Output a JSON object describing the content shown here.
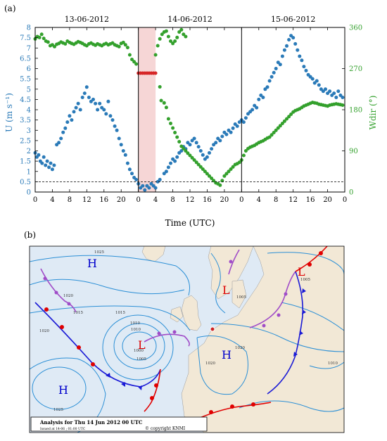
{
  "panels": {
    "a": {
      "label": "(a)"
    },
    "b": {
      "label": "(b)"
    }
  },
  "chart_data": {
    "type": "scatter",
    "date_labels": [
      "13-06-2012",
      "14-06-2012",
      "15-06-2012"
    ],
    "xlabel": "Time (UTC)",
    "x_ticks": [
      "0",
      "4",
      "8",
      "12",
      "16",
      "20",
      "0",
      "4",
      "8",
      "12",
      "16",
      "20",
      "0",
      "4",
      "8",
      "12",
      "16",
      "20",
      "0"
    ],
    "x_range_hours": [
      0,
      72
    ],
    "day_boundaries_hours": [
      24,
      48
    ],
    "shaded_interval_hours": [
      24,
      28
    ],
    "ylabel_left": "U (m s⁻¹)",
    "ylim_left": [
      0,
      8
    ],
    "yticks_left": [
      "0",
      "0.5",
      "1",
      "1.5",
      "2",
      "2.5",
      "3",
      "3.5",
      "4",
      "4.5",
      "5",
      "5.5",
      "6",
      "6.5",
      "7",
      "7.5",
      "8"
    ],
    "ylabel_right": "Wdir (°)",
    "ylim_right": [
      0,
      360
    ],
    "yticks_right": [
      "0",
      "90",
      "180",
      "270",
      "360"
    ],
    "threshold_line_left_units": 0.5,
    "colors": {
      "speed": "#2a7ab8",
      "direction": "#33a02c",
      "anomaly": "#d62728",
      "shade": "#f6d6d6"
    },
    "series": [
      {
        "axis": "left",
        "points": [
          [
            0,
            1.9
          ],
          [
            0.4,
            1.7
          ],
          [
            0.8,
            1.8
          ],
          [
            1.2,
            1.5
          ],
          [
            1.6,
            1.4
          ],
          [
            2,
            1.7
          ],
          [
            2.4,
            1.3
          ],
          [
            2.8,
            1.5
          ],
          [
            3.2,
            1.2
          ],
          [
            3.6,
            1.4
          ],
          [
            4,
            1.1
          ],
          [
            4.4,
            1.3
          ],
          [
            5,
            2.3
          ],
          [
            5.5,
            2.4
          ],
          [
            6,
            2.6
          ],
          [
            6.5,
            2.9
          ],
          [
            7,
            3.1
          ],
          [
            7.5,
            3.4
          ],
          [
            8,
            3.7
          ],
          [
            8.5,
            3.5
          ],
          [
            9,
            3.9
          ],
          [
            9.5,
            4.1
          ],
          [
            10,
            4.3
          ],
          [
            10.5,
            4.0
          ],
          [
            11,
            4.6
          ],
          [
            11.5,
            4.8
          ],
          [
            12,
            5.1
          ],
          [
            12.5,
            4.6
          ],
          [
            13,
            4.4
          ],
          [
            13.5,
            4.5
          ],
          [
            14,
            4.3
          ],
          [
            14.5,
            4.0
          ],
          [
            15,
            4.3
          ],
          [
            15.5,
            4.1
          ],
          [
            16,
            4.0
          ],
          [
            16.5,
            3.8
          ],
          [
            17,
            4.4
          ],
          [
            17.5,
            3.7
          ],
          [
            18,
            3.5
          ],
          [
            18.5,
            3.2
          ],
          [
            19,
            3.0
          ],
          [
            19.5,
            2.6
          ],
          [
            20,
            2.3
          ],
          [
            20.5,
            2.0
          ],
          [
            21,
            1.8
          ],
          [
            21.5,
            1.4
          ],
          [
            22,
            1.1
          ],
          [
            22.5,
            0.9
          ],
          [
            23,
            0.7
          ],
          [
            23.5,
            0.6
          ],
          [
            24,
            0.4
          ],
          [
            24.5,
            0.2
          ],
          [
            25,
            0.3
          ],
          [
            25.5,
            0.1
          ],
          [
            26,
            0.3
          ],
          [
            26.5,
            0.2
          ],
          [
            27,
            0.4
          ],
          [
            27.5,
            0.3
          ],
          [
            28,
            0.2
          ],
          [
            28.5,
            0.5
          ],
          [
            29,
            0.6
          ],
          [
            30,
            0.9
          ],
          [
            30.5,
            1.0
          ],
          [
            31,
            1.2
          ],
          [
            31.5,
            1.4
          ],
          [
            32,
            1.6
          ],
          [
            32.5,
            1.5
          ],
          [
            33,
            1.7
          ],
          [
            33.5,
            1.9
          ],
          [
            34,
            2.0
          ],
          [
            34.5,
            2.2
          ],
          [
            35,
            2.1
          ],
          [
            35.5,
            2.4
          ],
          [
            36,
            2.3
          ],
          [
            36.5,
            2.5
          ],
          [
            37,
            2.6
          ],
          [
            37.5,
            2.4
          ],
          [
            38,
            2.2
          ],
          [
            38.5,
            2.0
          ],
          [
            39,
            1.8
          ],
          [
            39.5,
            1.6
          ],
          [
            40,
            1.7
          ],
          [
            40.5,
            1.9
          ],
          [
            41,
            2.1
          ],
          [
            41.5,
            2.3
          ],
          [
            42,
            2.4
          ],
          [
            42.5,
            2.6
          ],
          [
            43,
            2.5
          ],
          [
            43.5,
            2.7
          ],
          [
            44,
            2.9
          ],
          [
            44.5,
            2.8
          ],
          [
            45,
            3.0
          ],
          [
            45.5,
            2.9
          ],
          [
            46,
            3.1
          ],
          [
            46.5,
            3.3
          ],
          [
            47,
            3.2
          ],
          [
            47.5,
            3.4
          ],
          [
            48,
            3.5
          ],
          [
            48.5,
            3.4
          ],
          [
            49,
            3.6
          ],
          [
            49.5,
            3.8
          ],
          [
            50,
            3.9
          ],
          [
            50.5,
            4.0
          ],
          [
            51,
            4.2
          ],
          [
            51.5,
            4.1
          ],
          [
            52,
            4.5
          ],
          [
            52.5,
            4.7
          ],
          [
            53,
            4.6
          ],
          [
            53.5,
            5.0
          ],
          [
            54,
            5.1
          ],
          [
            54.5,
            5.4
          ],
          [
            55,
            5.6
          ],
          [
            55.5,
            5.8
          ],
          [
            56,
            6.0
          ],
          [
            56.5,
            6.3
          ],
          [
            57,
            6.2
          ],
          [
            57.5,
            6.6
          ],
          [
            58,
            6.9
          ],
          [
            58.5,
            7.1
          ],
          [
            59,
            7.4
          ],
          [
            59.5,
            7.6
          ],
          [
            60,
            7.5
          ],
          [
            60.5,
            7.2
          ],
          [
            61,
            6.9
          ],
          [
            61.5,
            6.6
          ],
          [
            62,
            6.4
          ],
          [
            62.5,
            6.1
          ],
          [
            63,
            5.9
          ],
          [
            63.5,
            5.7
          ],
          [
            64,
            5.6
          ],
          [
            64.5,
            5.5
          ],
          [
            65,
            5.3
          ],
          [
            65.5,
            5.4
          ],
          [
            66,
            5.2
          ],
          [
            66.5,
            5.0
          ],
          [
            67,
            4.9
          ],
          [
            67.5,
            5.0
          ],
          [
            68,
            4.8
          ],
          [
            68.5,
            4.9
          ],
          [
            69,
            4.7
          ],
          [
            69.5,
            4.8
          ],
          [
            70,
            4.6
          ],
          [
            70.5,
            4.9
          ],
          [
            71,
            4.7
          ],
          [
            71.5,
            4.6
          ]
        ]
      },
      {
        "axis": "right",
        "points": [
          [
            0,
            335
          ],
          [
            0.5,
            340
          ],
          [
            1,
            338
          ],
          [
            1.5,
            345
          ],
          [
            2,
            336
          ],
          [
            2.5,
            330
          ],
          [
            3,
            328
          ],
          [
            3.5,
            320
          ],
          [
            4,
            322
          ],
          [
            4.5,
            318
          ],
          [
            5,
            323
          ],
          [
            5.5,
            325
          ],
          [
            6,
            328
          ],
          [
            6.5,
            326
          ],
          [
            7,
            324
          ],
          [
            7.5,
            330
          ],
          [
            8,
            327
          ],
          [
            8.5,
            325
          ],
          [
            9,
            323
          ],
          [
            9.5,
            326
          ],
          [
            10,
            329
          ],
          [
            10.5,
            327
          ],
          [
            11,
            325
          ],
          [
            11.5,
            322
          ],
          [
            12,
            320
          ],
          [
            12.5,
            324
          ],
          [
            13,
            326
          ],
          [
            13.5,
            323
          ],
          [
            14,
            321
          ],
          [
            14.5,
            324
          ],
          [
            15,
            322
          ],
          [
            15.5,
            320
          ],
          [
            16,
            323
          ],
          [
            16.5,
            325
          ],
          [
            17,
            322
          ],
          [
            17.5,
            324
          ],
          [
            18,
            326
          ],
          [
            18.5,
            322
          ],
          [
            19,
            320
          ],
          [
            19.5,
            318
          ],
          [
            20,
            325
          ],
          [
            20.5,
            327
          ],
          [
            21,
            322
          ],
          [
            21.5,
            316
          ],
          [
            22,
            300
          ],
          [
            22.5,
            290
          ],
          [
            23,
            285
          ],
          [
            23.5,
            280
          ],
          [
            28,
            300
          ],
          [
            28.5,
            320
          ],
          [
            29,
            335
          ],
          [
            29.5,
            345
          ],
          [
            30,
            350
          ],
          [
            30.5,
            352
          ],
          [
            31,
            340
          ],
          [
            31.5,
            330
          ],
          [
            32,
            325
          ],
          [
            32.5,
            330
          ],
          [
            33,
            338
          ],
          [
            33.5,
            350
          ],
          [
            34,
            355
          ],
          [
            34.5,
            345
          ],
          [
            35,
            340
          ],
          [
            29,
            230
          ],
          [
            29.3,
            200
          ],
          [
            30,
            195
          ],
          [
            30.5,
            185
          ],
          [
            31,
            160
          ],
          [
            31.5,
            150
          ],
          [
            32,
            140
          ],
          [
            32.5,
            130
          ],
          [
            33,
            120
          ],
          [
            33.5,
            110
          ],
          [
            34,
            100
          ],
          [
            34.5,
            95
          ],
          [
            35,
            90
          ],
          [
            35.5,
            85
          ],
          [
            36,
            80
          ],
          [
            36.5,
            75
          ],
          [
            37,
            70
          ],
          [
            37.5,
            65
          ],
          [
            38,
            60
          ],
          [
            38.5,
            55
          ],
          [
            39,
            50
          ],
          [
            39.5,
            45
          ],
          [
            40,
            40
          ],
          [
            40.5,
            35
          ],
          [
            41,
            30
          ],
          [
            41.5,
            25
          ],
          [
            42,
            20
          ],
          [
            42.5,
            18
          ],
          [
            43,
            15
          ],
          [
            43.5,
            25
          ],
          [
            44,
            35
          ],
          [
            44.5,
            40
          ],
          [
            45,
            45
          ],
          [
            45.5,
            50
          ],
          [
            46,
            55
          ],
          [
            46.5,
            60
          ],
          [
            47,
            62
          ],
          [
            47.5,
            65
          ],
          [
            48,
            70
          ],
          [
            48.5,
            80
          ],
          [
            49,
            90
          ],
          [
            49.5,
            95
          ],
          [
            50,
            98
          ],
          [
            50.5,
            100
          ],
          [
            51,
            102
          ],
          [
            51.5,
            105
          ],
          [
            52,
            108
          ],
          [
            52.5,
            110
          ],
          [
            53,
            112
          ],
          [
            53.5,
            115
          ],
          [
            54,
            118
          ],
          [
            54.5,
            120
          ],
          [
            55,
            125
          ],
          [
            55.5,
            130
          ],
          [
            56,
            135
          ],
          [
            56.5,
            140
          ],
          [
            57,
            145
          ],
          [
            57.5,
            150
          ],
          [
            58,
            155
          ],
          [
            58.5,
            160
          ],
          [
            59,
            165
          ],
          [
            59.5,
            170
          ],
          [
            60,
            175
          ],
          [
            60.5,
            178
          ],
          [
            61,
            180
          ],
          [
            61.5,
            182
          ],
          [
            62,
            185
          ],
          [
            62.5,
            188
          ],
          [
            63,
            190
          ],
          [
            63.5,
            192
          ],
          [
            64,
            194
          ],
          [
            64.5,
            196
          ],
          [
            65,
            195
          ],
          [
            65.5,
            194
          ],
          [
            66,
            192
          ],
          [
            66.5,
            191
          ],
          [
            67,
            190
          ],
          [
            67.5,
            189
          ],
          [
            68,
            188
          ],
          [
            68.5,
            190
          ],
          [
            69,
            191
          ],
          [
            69.5,
            192
          ],
          [
            70,
            193
          ],
          [
            70.5,
            192
          ],
          [
            71,
            191
          ],
          [
            71.5,
            190
          ]
        ]
      },
      {
        "axis": "right",
        "points": [
          [
            24,
            260
          ],
          [
            24.5,
            260
          ],
          [
            25,
            260
          ],
          [
            25.5,
            260
          ],
          [
            26,
            260
          ],
          [
            26.5,
            260
          ],
          [
            27,
            260
          ],
          [
            27.5,
            260
          ],
          [
            28,
            260
          ]
        ]
      }
    ]
  },
  "map": {
    "title_box": "Analysis for Thu 14 Jun 2012 00 UTC",
    "issued": "Issued at 14-06 ; 01:00 UTC",
    "copyright": "© copyright KNMI",
    "pressure_centers": [
      "H",
      "H",
      "H",
      "L",
      "L",
      "L"
    ],
    "isobar_labels": [
      "1025",
      "1020",
      "1020",
      "1015",
      "1015",
      "1010",
      "1010",
      "1005",
      "1005",
      "1000",
      "1025",
      "1020",
      "1020",
      "1010",
      "1005"
    ],
    "colors": {
      "sea": "#dfeaf5",
      "land": "#f2e8d6",
      "isobar": "#2b8fd6",
      "high": "#0000cc",
      "low": "#dd0000",
      "warm_front": "#e00000",
      "cold_front": "#1a1ad6",
      "occluded": "#a04cc8"
    }
  }
}
